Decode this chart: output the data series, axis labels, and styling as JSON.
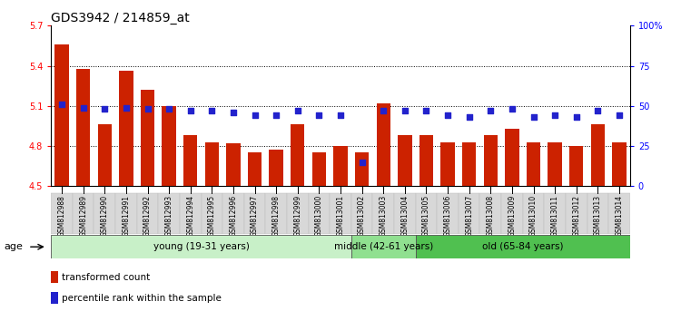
{
  "title": "GDS3942 / 214859_at",
  "samples": [
    "GSM812988",
    "GSM812989",
    "GSM812990",
    "GSM812991",
    "GSM812992",
    "GSM812993",
    "GSM812994",
    "GSM812995",
    "GSM812996",
    "GSM812997",
    "GSM812998",
    "GSM812999",
    "GSM813000",
    "GSM813001",
    "GSM813002",
    "GSM813003",
    "GSM813004",
    "GSM813005",
    "GSM813006",
    "GSM813007",
    "GSM813008",
    "GSM813009",
    "GSM813010",
    "GSM813011",
    "GSM813012",
    "GSM813013",
    "GSM813014"
  ],
  "transformed_count": [
    5.56,
    5.38,
    4.96,
    5.36,
    5.22,
    5.1,
    4.88,
    4.83,
    4.82,
    4.75,
    4.77,
    4.96,
    4.75,
    4.8,
    4.75,
    5.12,
    4.88,
    4.88,
    4.83,
    4.83,
    4.88,
    4.93,
    4.83,
    4.83,
    4.8,
    4.96,
    4.83
  ],
  "percentile_rank": [
    51,
    49,
    48,
    49,
    48,
    48,
    47,
    47,
    46,
    44,
    44,
    47,
    44,
    44,
    15,
    47,
    47,
    47,
    44,
    43,
    47,
    48,
    43,
    44,
    43,
    47,
    44
  ],
  "groups": [
    {
      "label": "young (19-31 years)",
      "start": 0,
      "end": 14,
      "color": "#c8f0c8"
    },
    {
      "label": "middle (42-61 years)",
      "start": 14,
      "end": 17,
      "color": "#90e090"
    },
    {
      "label": "old (65-84 years)",
      "start": 17,
      "end": 27,
      "color": "#50c050"
    }
  ],
  "ylim_left": [
    4.5,
    5.7
  ],
  "ylim_right": [
    0,
    100
  ],
  "yticks_left": [
    4.5,
    4.8,
    5.1,
    5.4,
    5.7
  ],
  "ytick_labels_left": [
    "4.5",
    "4.8",
    "5.1",
    "5.4",
    "5.7"
  ],
  "yticks_right": [
    0,
    25,
    50,
    75,
    100
  ],
  "ytick_labels_right": [
    "0",
    "25",
    "50",
    "75",
    "100%"
  ],
  "bar_color": "#cc2200",
  "dot_color": "#2222cc",
  "bar_bottom": 4.5,
  "background_color": "#ffffff",
  "title_fontsize": 10,
  "tick_fontsize": 7,
  "sample_fontsize": 5.5,
  "legend_fontsize": 7.5,
  "age_fontsize": 7.5
}
